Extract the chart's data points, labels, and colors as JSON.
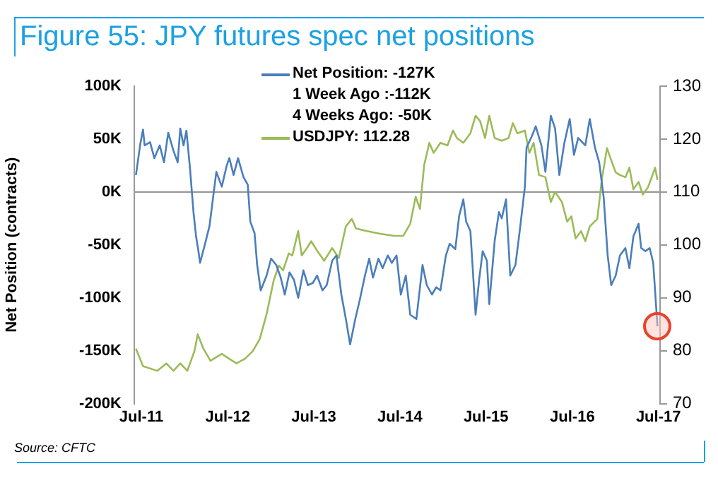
{
  "chart_data": {
    "type": "line",
    "title": "Figure 55: JPY futures spec net positions",
    "ylabel": "Net Position (contracts)",
    "annotations": [
      "1 Week Ago :-112K",
      "4 Weeks Ago: -50K",
      "Source: CFTC"
    ],
    "legend": "top",
    "marker": "none",
    "line_style": "solid",
    "xlim": [
      "2011-06-01",
      "2017-07-08"
    ],
    "xticks": [
      {
        "value": "2011-07",
        "label": "Jul-11"
      },
      {
        "value": "2012-07",
        "label": "Jul-12"
      },
      {
        "value": "2013-07",
        "label": "Jul-13"
      },
      {
        "value": "2014-07",
        "label": "Jul-14"
      },
      {
        "value": "2015-07",
        "label": "Jul-15"
      },
      {
        "value": "2016-07",
        "label": "Jul-16"
      },
      {
        "value": "2017-07",
        "label": "Jul-17"
      }
    ],
    "ylim": [
      -200,
      100
    ],
    "yticks": [
      {
        "value": -200,
        "label": "-200K"
      },
      {
        "value": -150,
        "label": "-150K"
      },
      {
        "value": -100,
        "label": "-100K"
      },
      {
        "value": -50,
        "label": "-50K"
      },
      {
        "value": 0,
        "label": "0K"
      },
      {
        "value": 50,
        "label": "50K"
      },
      {
        "value": 100,
        "label": "100K"
      }
    ],
    "y2lim": [
      70,
      130
    ],
    "y2ticks": [
      70,
      80,
      90,
      100,
      110,
      120,
      130
    ],
    "ref_lines": [
      {
        "axis": "y",
        "value": 0,
        "color": "#999999"
      }
    ],
    "series": [
      {
        "name": "Net Position: -127K",
        "color": "#4a7ebb",
        "x": [
          "2011-06-08",
          "2011-06-27",
          "2011-07-08",
          "2011-07-15",
          "2011-08-07",
          "2011-08-25",
          "2011-09-17",
          "2011-10-05",
          "2011-10-23",
          "2011-11-14",
          "2011-12-02",
          "2011-12-13",
          "2011-12-27",
          "2012-01-08",
          "2012-01-23",
          "2012-02-07",
          "2012-02-18",
          "2012-02-28",
          "2012-03-06",
          "2012-03-27",
          "2012-04-15",
          "2012-04-28",
          "2012-05-14",
          "2012-06-06",
          "2012-06-27",
          "2012-07-08",
          "2012-07-26",
          "2012-08-14",
          "2012-09-06",
          "2012-09-24",
          "2012-10-05",
          "2012-10-23",
          "2012-11-03",
          "2012-11-18",
          "2012-12-13",
          "2013-01-01",
          "2013-01-23",
          "2013-02-11",
          "2013-02-28",
          "2013-03-20",
          "2013-04-08",
          "2013-04-26",
          "2013-05-18",
          "2013-06-06",
          "2013-06-27",
          "2013-07-15",
          "2013-08-07",
          "2013-08-25",
          "2013-09-17",
          "2013-10-05",
          "2013-10-26",
          "2013-11-14",
          "2013-12-02",
          "2013-12-24",
          "2014-01-12",
          "2014-02-03",
          "2014-02-21",
          "2014-03-09",
          "2014-04-01",
          "2014-04-19",
          "2014-05-11",
          "2014-05-28",
          "2014-06-17",
          "2014-07-05",
          "2014-07-26",
          "2014-08-14",
          "2014-09-09",
          "2014-10-05",
          "2014-10-23",
          "2014-11-14",
          "2014-12-02",
          "2014-12-20",
          "2015-01-12",
          "2015-01-28",
          "2015-02-21",
          "2015-03-09",
          "2015-03-27",
          "2015-04-08",
          "2015-04-26",
          "2015-05-18",
          "2015-06-02",
          "2015-06-17",
          "2015-07-05",
          "2015-07-15",
          "2015-08-07",
          "2015-08-25",
          "2015-09-06",
          "2015-09-24",
          "2015-10-12",
          "2015-11-03",
          "2015-11-21",
          "2015-12-13",
          "2015-12-20",
          "2016-01-12",
          "2016-01-28",
          "2016-02-21",
          "2016-03-09",
          "2016-04-01",
          "2016-04-19",
          "2016-05-07",
          "2016-05-28",
          "2016-06-20",
          "2016-07-08",
          "2016-07-26",
          "2016-08-25",
          "2016-09-13",
          "2016-10-05",
          "2016-10-23",
          "2016-11-11",
          "2016-11-28",
          "2016-12-13",
          "2017-01-01",
          "2017-01-19",
          "2017-02-11",
          "2017-02-28",
          "2017-03-17",
          "2017-04-08",
          "2017-04-19",
          "2017-05-07",
          "2017-05-25",
          "2017-06-09",
          "2017-06-27"
        ],
        "values": [
          16,
          46,
          59,
          44,
          47,
          32,
          44,
          28,
          56,
          39,
          28,
          60,
          44,
          58,
          23,
          -19,
          -42,
          -56,
          -67,
          -49,
          -32,
          -9,
          19,
          5,
          25,
          32,
          16,
          32,
          14,
          7,
          -28,
          -39,
          -69,
          -93,
          -79,
          -63,
          -69,
          -81,
          -97,
          -76,
          -83,
          -100,
          -74,
          -88,
          -86,
          -79,
          -93,
          -88,
          -65,
          -60,
          -97,
          -120,
          -144,
          -120,
          -102,
          -79,
          -63,
          -81,
          -63,
          -72,
          -60,
          -67,
          -60,
          -97,
          -79,
          -116,
          -120,
          -69,
          -88,
          -97,
          -90,
          -93,
          -60,
          -49,
          -54,
          -23,
          -7,
          -28,
          -37,
          -116,
          -83,
          -56,
          -65,
          -106,
          -46,
          -19,
          -25,
          -7,
          -79,
          -69,
          -37,
          5,
          42,
          53,
          62,
          44,
          19,
          72,
          60,
          16,
          46,
          69,
          35,
          51,
          44,
          69,
          42,
          28,
          -5,
          -60,
          -88,
          -79,
          -60,
          -53,
          -72,
          -42,
          -30,
          -53,
          -56,
          -53,
          -67,
          -127
        ]
      },
      {
        "name": "USDJPY: 112.28",
        "color": "#9bbb59",
        "axis": "y2",
        "x": [
          "2011-06-08",
          "2011-07-08",
          "2011-09-06",
          "2011-10-15",
          "2011-11-14",
          "2011-12-13",
          "2012-01-12",
          "2012-02-11",
          "2012-02-25",
          "2012-03-20",
          "2012-04-19",
          "2012-06-06",
          "2012-08-07",
          "2012-09-13",
          "2012-10-15",
          "2012-11-14",
          "2012-12-13",
          "2013-01-12",
          "2013-02-03",
          "2013-02-21",
          "2013-03-17",
          "2013-04-01",
          "2013-04-26",
          "2013-05-11",
          "2013-06-02",
          "2013-06-20",
          "2013-07-15",
          "2013-08-14",
          "2013-09-17",
          "2013-10-15",
          "2013-11-14",
          "2013-12-09",
          "2013-12-27",
          "2014-02-11",
          "2014-04-08",
          "2014-06-06",
          "2014-07-15",
          "2014-08-14",
          "2014-09-06",
          "2014-09-24",
          "2014-10-12",
          "2014-11-03",
          "2014-11-21",
          "2014-12-20",
          "2015-01-19",
          "2015-02-11",
          "2015-02-28",
          "2015-03-27",
          "2015-04-26",
          "2015-05-18",
          "2015-06-06",
          "2015-06-27",
          "2015-07-15",
          "2015-08-07",
          "2015-09-06",
          "2015-10-05",
          "2015-10-23",
          "2015-11-11",
          "2015-12-13",
          "2016-01-01",
          "2016-01-19",
          "2016-02-11",
          "2016-03-09",
          "2016-04-01",
          "2016-04-19",
          "2016-05-18",
          "2016-06-09",
          "2016-06-27",
          "2016-07-15",
          "2016-08-07",
          "2016-08-25",
          "2016-09-13",
          "2016-10-15",
          "2016-11-03",
          "2016-11-25",
          "2016-12-13",
          "2017-01-01",
          "2017-01-19",
          "2017-02-11",
          "2017-02-28",
          "2017-03-17",
          "2017-04-08",
          "2017-04-26",
          "2017-05-18",
          "2017-06-06",
          "2017-06-17",
          "2017-06-27"
        ],
        "values": [
          80.4,
          77.1,
          76.2,
          77.6,
          76.2,
          77.6,
          76.2,
          79.9,
          83.1,
          80.4,
          78.1,
          79.4,
          77.6,
          78.5,
          79.9,
          82.2,
          86.9,
          93.3,
          96.1,
          95.2,
          98.4,
          98,
          102.6,
          98,
          99.4,
          100.7,
          98.9,
          97,
          99.4,
          97.5,
          103.5,
          104.9,
          103.1,
          102.6,
          102.1,
          101.7,
          101.7,
          104,
          109.1,
          106.8,
          115.1,
          119.3,
          117.4,
          119.3,
          118.8,
          121.6,
          120.2,
          119.3,
          121.1,
          124.4,
          123.4,
          120.2,
          124.4,
          120.2,
          119.7,
          120.2,
          123,
          121.1,
          121.6,
          117.4,
          119.3,
          113.2,
          112.8,
          108.1,
          110,
          108.1,
          104.4,
          105.4,
          101.2,
          102.6,
          100.7,
          103.5,
          104.9,
          112.3,
          118.3,
          116,
          113.7,
          113.2,
          112.8,
          114.6,
          110.5,
          111.9,
          109.5,
          110.9,
          113.2,
          114.6,
          112.3
        ]
      }
    ]
  }
}
